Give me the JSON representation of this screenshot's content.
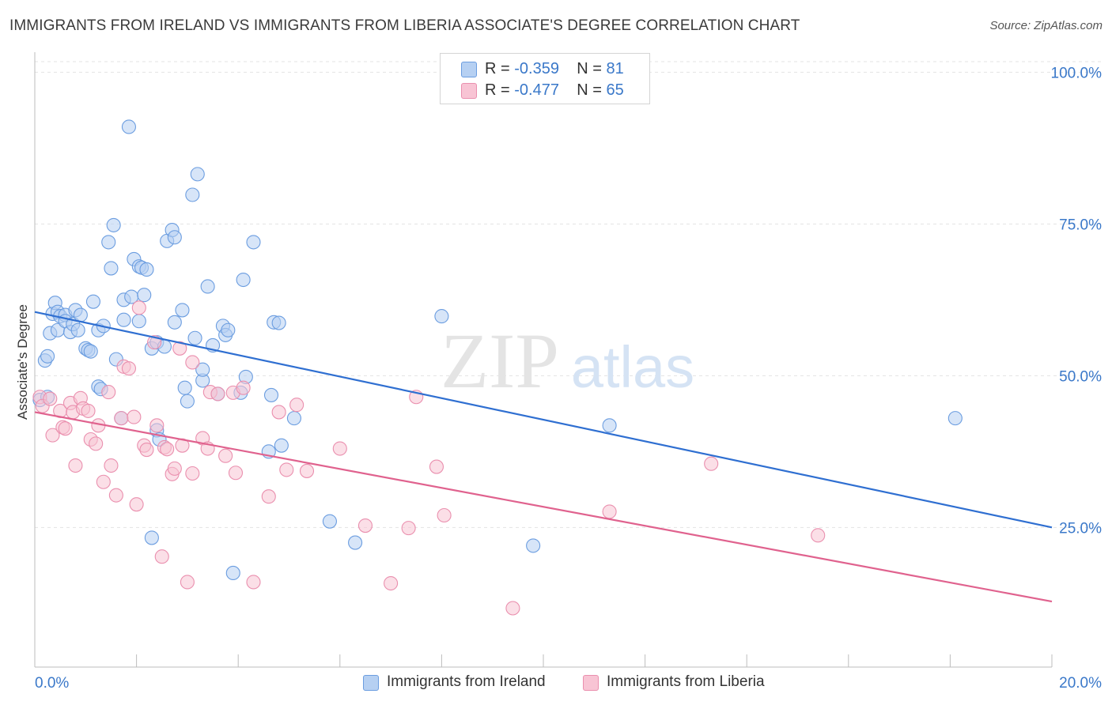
{
  "header": {
    "title": "IMMIGRANTS FROM IRELAND VS IMMIGRANTS FROM LIBERIA ASSOCIATE'S DEGREE CORRELATION CHART",
    "source": "Source: ZipAtlas.com"
  },
  "watermark": {
    "zip": "ZIP",
    "atlas": "atlas"
  },
  "legend": {
    "rows": [
      {
        "r_label": "R = ",
        "r_value": "-0.359",
        "n_label": "N = ",
        "n_value": "81"
      },
      {
        "r_label": "R = ",
        "r_value": "-0.477",
        "n_label": "N = ",
        "n_value": "65"
      }
    ]
  },
  "chart_data": {
    "type": "scatter",
    "title": "IMMIGRANTS FROM IRELAND VS IMMIGRANTS FROM LIBERIA ASSOCIATE'S DEGREE CORRELATION CHART",
    "xlabel": "",
    "ylabel": "Associate's Degree",
    "xlim": [
      0,
      20
    ],
    "ylim": [
      2,
      102
    ],
    "x_tick_labels": [
      "0.0%",
      "20.0%"
    ],
    "y_ticks": [
      25,
      50,
      75,
      100
    ],
    "y_tick_labels": [
      "25.0%",
      "50.0%",
      "75.0%",
      "100.0%"
    ],
    "grid": true,
    "legend_position": "bottom",
    "colors": {
      "ireland_fill": "#b6d0f2",
      "ireland_stroke": "#6b9de0",
      "ireland_line": "#2f6fd1",
      "liberia_fill": "#f8c4d4",
      "liberia_stroke": "#ea8fae",
      "liberia_line": "#e0628e",
      "tick_label": "#3a78c9"
    },
    "series": [
      {
        "name": "Immigrants from Ireland",
        "r": -0.359,
        "n": 81,
        "trend": {
          "x": [
            0,
            20
          ],
          "y": [
            60.5,
            25.0
          ]
        },
        "points": [
          {
            "x": 0.1,
            "y": 46.0
          },
          {
            "x": 0.2,
            "y": 52.5
          },
          {
            "x": 0.25,
            "y": 53.2
          },
          {
            "x": 0.25,
            "y": 46.5
          },
          {
            "x": 0.3,
            "y": 57.0
          },
          {
            "x": 0.35,
            "y": 60.2
          },
          {
            "x": 0.4,
            "y": 62.0
          },
          {
            "x": 0.45,
            "y": 60.5
          },
          {
            "x": 0.45,
            "y": 57.5
          },
          {
            "x": 0.5,
            "y": 59.8
          },
          {
            "x": 0.6,
            "y": 60.0
          },
          {
            "x": 0.6,
            "y": 59.0
          },
          {
            "x": 0.7,
            "y": 57.2
          },
          {
            "x": 0.75,
            "y": 58.5
          },
          {
            "x": 0.8,
            "y": 60.8
          },
          {
            "x": 0.85,
            "y": 57.5
          },
          {
            "x": 0.9,
            "y": 60.0
          },
          {
            "x": 1.0,
            "y": 54.5
          },
          {
            "x": 1.05,
            "y": 54.2
          },
          {
            "x": 1.1,
            "y": 54.0
          },
          {
            "x": 1.15,
            "y": 62.2
          },
          {
            "x": 1.25,
            "y": 57.5
          },
          {
            "x": 1.25,
            "y": 48.2
          },
          {
            "x": 1.35,
            "y": 58.2
          },
          {
            "x": 1.3,
            "y": 47.8
          },
          {
            "x": 1.45,
            "y": 72.0
          },
          {
            "x": 1.5,
            "y": 67.7
          },
          {
            "x": 1.55,
            "y": 74.8
          },
          {
            "x": 1.6,
            "y": 52.7
          },
          {
            "x": 1.7,
            "y": 43.0
          },
          {
            "x": 1.75,
            "y": 62.5
          },
          {
            "x": 1.75,
            "y": 59.2
          },
          {
            "x": 1.85,
            "y": 91.0
          },
          {
            "x": 1.9,
            "y": 63.0
          },
          {
            "x": 1.95,
            "y": 69.2
          },
          {
            "x": 2.05,
            "y": 59.0
          },
          {
            "x": 2.05,
            "y": 68.0
          },
          {
            "x": 2.1,
            "y": 67.8
          },
          {
            "x": 2.15,
            "y": 63.3
          },
          {
            "x": 2.2,
            "y": 67.5
          },
          {
            "x": 2.3,
            "y": 54.5
          },
          {
            "x": 2.4,
            "y": 55.5
          },
          {
            "x": 2.4,
            "y": 41.0
          },
          {
            "x": 2.45,
            "y": 39.5
          },
          {
            "x": 2.55,
            "y": 54.8
          },
          {
            "x": 2.6,
            "y": 72.2
          },
          {
            "x": 2.7,
            "y": 74.0
          },
          {
            "x": 2.75,
            "y": 72.8
          },
          {
            "x": 2.75,
            "y": 58.8
          },
          {
            "x": 2.9,
            "y": 60.8
          },
          {
            "x": 2.95,
            "y": 48.0
          },
          {
            "x": 3.0,
            "y": 45.8
          },
          {
            "x": 3.1,
            "y": 79.8
          },
          {
            "x": 3.15,
            "y": 56.2
          },
          {
            "x": 3.2,
            "y": 83.2
          },
          {
            "x": 3.3,
            "y": 49.2
          },
          {
            "x": 3.3,
            "y": 51.0
          },
          {
            "x": 3.4,
            "y": 64.7
          },
          {
            "x": 3.5,
            "y": 55.0
          },
          {
            "x": 3.6,
            "y": 47.0
          },
          {
            "x": 3.7,
            "y": 58.2
          },
          {
            "x": 3.75,
            "y": 56.7
          },
          {
            "x": 3.8,
            "y": 57.5
          },
          {
            "x": 3.9,
            "y": 17.5
          },
          {
            "x": 4.05,
            "y": 47.2
          },
          {
            "x": 4.15,
            "y": 49.8
          },
          {
            "x": 4.1,
            "y": 65.8
          },
          {
            "x": 4.3,
            "y": 72.0
          },
          {
            "x": 4.6,
            "y": 37.5
          },
          {
            "x": 4.65,
            "y": 46.8
          },
          {
            "x": 4.7,
            "y": 58.8
          },
          {
            "x": 4.8,
            "y": 58.7
          },
          {
            "x": 4.85,
            "y": 38.5
          },
          {
            "x": 5.1,
            "y": 43.0
          },
          {
            "x": 5.8,
            "y": 26.0
          },
          {
            "x": 6.3,
            "y": 22.5
          },
          {
            "x": 8.0,
            "y": 59.8
          },
          {
            "x": 9.8,
            "y": 22.0
          },
          {
            "x": 11.3,
            "y": 41.8
          },
          {
            "x": 18.1,
            "y": 43.0
          },
          {
            "x": 2.3,
            "y": 23.3
          }
        ]
      },
      {
        "name": "Immigrants from Liberia",
        "r": -0.477,
        "n": 65,
        "trend": {
          "x": [
            0,
            20
          ],
          "y": [
            44.0,
            12.8
          ]
        },
        "points": [
          {
            "x": 0.1,
            "y": 46.5
          },
          {
            "x": 0.15,
            "y": 45.0
          },
          {
            "x": 0.3,
            "y": 46.2
          },
          {
            "x": 0.35,
            "y": 40.2
          },
          {
            "x": 0.5,
            "y": 44.2
          },
          {
            "x": 0.55,
            "y": 41.5
          },
          {
            "x": 0.6,
            "y": 41.3
          },
          {
            "x": 0.7,
            "y": 45.5
          },
          {
            "x": 0.75,
            "y": 44.0
          },
          {
            "x": 0.8,
            "y": 35.2
          },
          {
            "x": 0.9,
            "y": 46.3
          },
          {
            "x": 0.95,
            "y": 44.6
          },
          {
            "x": 1.05,
            "y": 44.2
          },
          {
            "x": 1.1,
            "y": 39.5
          },
          {
            "x": 1.2,
            "y": 38.8
          },
          {
            "x": 1.25,
            "y": 41.8
          },
          {
            "x": 1.35,
            "y": 32.5
          },
          {
            "x": 1.45,
            "y": 47.3
          },
          {
            "x": 1.5,
            "y": 35.2
          },
          {
            "x": 1.6,
            "y": 30.3
          },
          {
            "x": 1.7,
            "y": 43.0
          },
          {
            "x": 1.75,
            "y": 51.5
          },
          {
            "x": 1.85,
            "y": 51.2
          },
          {
            "x": 1.95,
            "y": 43.2
          },
          {
            "x": 2.0,
            "y": 28.8
          },
          {
            "x": 2.05,
            "y": 61.2
          },
          {
            "x": 2.15,
            "y": 38.5
          },
          {
            "x": 2.2,
            "y": 37.8
          },
          {
            "x": 2.35,
            "y": 55.5
          },
          {
            "x": 2.4,
            "y": 41.8
          },
          {
            "x": 2.5,
            "y": 20.2
          },
          {
            "x": 2.55,
            "y": 38.2
          },
          {
            "x": 2.6,
            "y": 37.9
          },
          {
            "x": 2.7,
            "y": 33.8
          },
          {
            "x": 2.75,
            "y": 34.7
          },
          {
            "x": 2.85,
            "y": 54.5
          },
          {
            "x": 2.9,
            "y": 38.5
          },
          {
            "x": 3.0,
            "y": 16.0
          },
          {
            "x": 3.1,
            "y": 52.2
          },
          {
            "x": 3.1,
            "y": 33.9
          },
          {
            "x": 3.3,
            "y": 39.7
          },
          {
            "x": 3.4,
            "y": 38.0
          },
          {
            "x": 3.45,
            "y": 47.3
          },
          {
            "x": 3.6,
            "y": 47.0
          },
          {
            "x": 3.75,
            "y": 36.8
          },
          {
            "x": 3.9,
            "y": 47.2
          },
          {
            "x": 3.95,
            "y": 34.0
          },
          {
            "x": 4.1,
            "y": 48.0
          },
          {
            "x": 4.3,
            "y": 16.0
          },
          {
            "x": 4.6,
            "y": 30.1
          },
          {
            "x": 4.8,
            "y": 44.0
          },
          {
            "x": 4.95,
            "y": 34.5
          },
          {
            "x": 5.15,
            "y": 45.2
          },
          {
            "x": 5.35,
            "y": 34.3
          },
          {
            "x": 6.0,
            "y": 38.0
          },
          {
            "x": 6.5,
            "y": 25.3
          },
          {
            "x": 7.0,
            "y": 15.8
          },
          {
            "x": 7.35,
            "y": 24.9
          },
          {
            "x": 7.5,
            "y": 46.5
          },
          {
            "x": 7.9,
            "y": 35.0
          },
          {
            "x": 8.05,
            "y": 27.0
          },
          {
            "x": 9.4,
            "y": 11.7
          },
          {
            "x": 11.3,
            "y": 27.6
          },
          {
            "x": 13.3,
            "y": 35.5
          },
          {
            "x": 15.4,
            "y": 23.7
          }
        ]
      }
    ]
  }
}
